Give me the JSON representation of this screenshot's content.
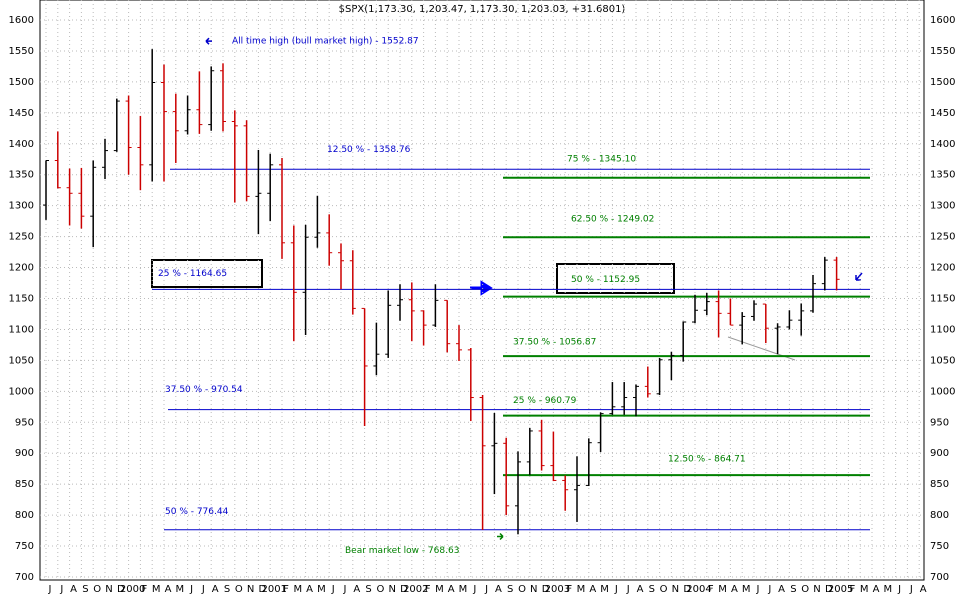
{
  "chart_data": {
    "type": "ohlc",
    "title": "$SPX(1,173.30, 1,203.47, 1,173.30, 1,203.03, +31.6801)",
    "categories": [
      "J",
      "J",
      "A",
      "S",
      "O",
      "N",
      "D",
      "2000",
      "F",
      "M",
      "A",
      "M",
      "J",
      "J",
      "A",
      "S",
      "O",
      "N",
      "D",
      "2001",
      "F",
      "M",
      "A",
      "M",
      "J",
      "J",
      "A",
      "S",
      "O",
      "N",
      "D",
      "2002",
      "F",
      "M",
      "A",
      "M",
      "J",
      "J",
      "A",
      "S",
      "O",
      "N",
      "D",
      "2003",
      "F",
      "M",
      "A",
      "M",
      "J",
      "J",
      "A",
      "S",
      "O",
      "N",
      "D",
      "2004",
      "F",
      "M",
      "A",
      "M",
      "J",
      "J",
      "A",
      "S",
      "O",
      "N",
      "D",
      "2005",
      "F",
      "M",
      "A",
      "M",
      "J",
      "J",
      "A"
    ],
    "open": [
      1301,
      1373,
      1329,
      1320,
      1283,
      1362,
      1389,
      1469,
      1394,
      1366,
      1499,
      1452,
      1421,
      1455,
      1431,
      1518,
      1436,
      1429,
      1315,
      1320,
      1366,
      1240,
      1160,
      1249,
      1256,
      1224,
      1211,
      1134,
      1041,
      1060,
      1139,
      1148,
      1130,
      1107,
      1147,
      1077,
      1067,
      990,
      912,
      916,
      815,
      886,
      936,
      880,
      856,
      841,
      848,
      917,
      964,
      975,
      990,
      1008,
      996,
      1051,
      1058,
      1112,
      1131,
      1145,
      1126,
      1107,
      1121,
      1141,
      1102,
      1104,
      1115,
      1130,
      1174,
      1212,
      null,
      null,
      null,
      null,
      null,
      null,
      null
    ],
    "high": [
      1373,
      1420,
      1360,
      1361,
      1373,
      1408,
      1473,
      1478,
      1445,
      1553,
      1528,
      1481,
      1478,
      1517,
      1525,
      1530,
      1454,
      1438,
      1390,
      1384,
      1377,
      1268,
      1269,
      1316,
      1286,
      1239,
      1228,
      1134,
      1111,
      1163,
      1173,
      1176,
      1131,
      1173,
      1147,
      1107,
      1070,
      994,
      965,
      925,
      903,
      941,
      954,
      935,
      864,
      895,
      924,
      966,
      1015,
      1015,
      1011,
      1040,
      1054,
      1064,
      1113,
      1156,
      1159,
      1163,
      1150,
      1128,
      1147,
      1141,
      1110,
      1131,
      1142,
      1188,
      1217,
      1217,
      null,
      null,
      null,
      null,
      null,
      null,
      null
    ],
    "low": [
      1277,
      1328,
      1268,
      1263,
      1233,
      1343,
      1387,
      1350,
      1325,
      1339,
      1339,
      1369,
      1415,
      1416,
      1421,
      1420,
      1305,
      1307,
      1254,
      1275,
      1214,
      1081,
      1091,
      1232,
      1203,
      1165,
      1124,
      944,
      1026,
      1054,
      1114,
      1081,
      1074,
      1104,
      1063,
      1049,
      952,
      776,
      834,
      800,
      769,
      865,
      872,
      855,
      807,
      789,
      847,
      902,
      962,
      962,
      960,
      990,
      994,
      1018,
      1048,
      1110,
      1123,
      1087,
      1107,
      1076,
      1114,
      1078,
      1060,
      1100,
      1090,
      1127,
      1163,
      1163,
      null,
      null,
      null,
      null,
      null,
      null,
      null
    ],
    "close": [
      1373,
      1329,
      1320,
      1283,
      1362,
      1389,
      1469,
      1394,
      1366,
      1499,
      1452,
      1421,
      1455,
      1431,
      1518,
      1436,
      1429,
      1315,
      1320,
      1366,
      1240,
      1160,
      1249,
      1256,
      1224,
      1211,
      1134,
      1041,
      1060,
      1139,
      1148,
      1130,
      1107,
      1147,
      1077,
      1067,
      990,
      912,
      916,
      815,
      886,
      936,
      880,
      856,
      841,
      848,
      917,
      964,
      975,
      990,
      1008,
      996,
      1051,
      1058,
      1112,
      1131,
      1145,
      1126,
      1107,
      1121,
      1141,
      1102,
      1104,
      1115,
      1130,
      1174,
      1212,
      1181,
      null,
      null,
      null,
      null,
      null,
      null,
      null
    ],
    "up_color": "#000000",
    "down_color": "#cc0000",
    "ylim": [
      700,
      1600
    ],
    "yticks": [
      700,
      750,
      800,
      850,
      900,
      950,
      1000,
      1050,
      1100,
      1150,
      1200,
      1250,
      1300,
      1350,
      1400,
      1450,
      1500,
      1550,
      1600
    ],
    "grid": true,
    "levels": [
      {
        "label": "12.50 % - 1358.76",
        "value": 1358.76,
        "color": "#0000cc"
      },
      {
        "label": "25 % - 1164.65",
        "value": 1164.65,
        "color": "#0000cc"
      },
      {
        "label": "37.50 % - 970.54",
        "value": 970.54,
        "color": "#0000cc"
      },
      {
        "label": "50 % - 776.44",
        "value": 776.44,
        "color": "#0000cc"
      },
      {
        "label": "75 % - 1345.10",
        "value": 1345.1,
        "color": "#008000"
      },
      {
        "label": "62.50 % - 1249.02",
        "value": 1249.02,
        "color": "#008000"
      },
      {
        "label": "50 % - 1152.95",
        "value": 1152.95,
        "color": "#008000"
      },
      {
        "label": "37.50 % - 1056.87",
        "value": 1056.87,
        "color": "#008000"
      },
      {
        "label": "25 % - 960.79",
        "value": 960.79,
        "color": "#008000"
      },
      {
        "label": "12.50 % - 864.71",
        "value": 864.71,
        "color": "#008000"
      }
    ],
    "annotations": [
      {
        "text": "All time high (bull market high) - 1552.87",
        "value": 1552.87,
        "color": "#0000cc"
      },
      {
        "text": "Bear market low - 768.63",
        "value": 768.63,
        "color": "#008000"
      }
    ]
  }
}
